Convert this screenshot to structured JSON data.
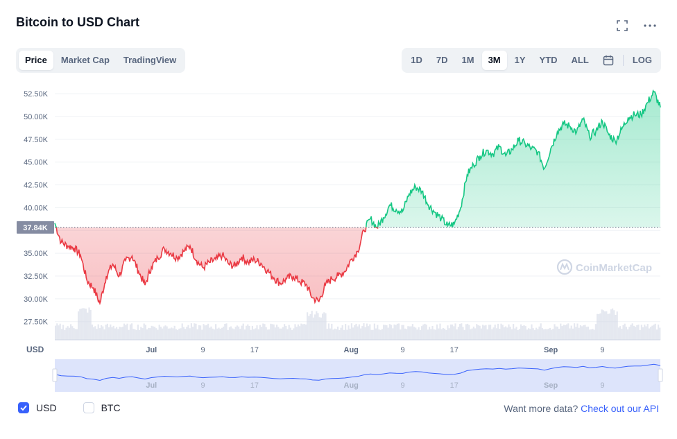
{
  "header": {
    "title": "Bitcoin to USD Chart",
    "fullscreen_icon": "fullscreen-icon",
    "more_icon": "more-dots-icon"
  },
  "metric_tabs": [
    {
      "label": "Price",
      "active": true
    },
    {
      "label": "Market Cap",
      "active": false
    },
    {
      "label": "TradingView",
      "active": false
    }
  ],
  "range_tabs": [
    {
      "label": "1D",
      "active": false
    },
    {
      "label": "7D",
      "active": false
    },
    {
      "label": "1M",
      "active": false
    },
    {
      "label": "3M",
      "active": true
    },
    {
      "label": "1Y",
      "active": false
    },
    {
      "label": "YTD",
      "active": false
    },
    {
      "label": "ALL",
      "active": false
    }
  ],
  "calendar_icon": "calendar-icon",
  "log_label": "LOG",
  "currency": {
    "usd": {
      "label": "USD",
      "checked": true
    },
    "btc": {
      "label": "BTC",
      "checked": false
    }
  },
  "api": {
    "prompt": "Want more data?",
    "link": "Check out our API"
  },
  "colors": {
    "up": "#16c784",
    "down": "#ea3943",
    "accent": "#3861fb",
    "navigator_line": "#3861fb"
  },
  "chart_data": {
    "type": "area",
    "baseline_label": "37.84K",
    "baseline": 37840,
    "y_unit_label": "USD",
    "ylim": [
      25500,
      53500
    ],
    "yticks": [
      27500,
      30000,
      32500,
      35000,
      37500,
      40000,
      42500,
      45000,
      47500,
      50000,
      52500
    ],
    "ytick_labels": [
      "27.50K",
      "30.00K",
      "32.50K",
      "35.00K",
      "",
      "40.00K",
      "42.50K",
      "45.00K",
      "47.50K",
      "50.00K",
      "52.50K"
    ],
    "xlim": [
      "2021-06-16",
      "2021-09-18"
    ],
    "xticks": [
      {
        "date": "2021-07-01",
        "label": "Jul",
        "bold": true
      },
      {
        "date": "2021-07-09",
        "label": "9",
        "bold": false
      },
      {
        "date": "2021-07-17",
        "label": "17",
        "bold": false
      },
      {
        "date": "2021-08-01",
        "label": "Aug",
        "bold": true
      },
      {
        "date": "2021-08-09",
        "label": "9",
        "bold": false
      },
      {
        "date": "2021-08-17",
        "label": "17",
        "bold": false
      },
      {
        "date": "2021-09-01",
        "label": "Sep",
        "bold": true
      },
      {
        "date": "2021-09-09",
        "label": "9",
        "bold": false
      }
    ],
    "grid": true,
    "watermark": "CoinMarketCap",
    "series": [
      {
        "values": [
          [
            "2021-06-16",
            38300
          ],
          [
            "2021-06-17",
            36200
          ],
          [
            "2021-06-18",
            35800
          ],
          [
            "2021-06-19",
            35600
          ],
          [
            "2021-06-20",
            34800
          ],
          [
            "2021-06-21",
            32000
          ],
          [
            "2021-06-22",
            31200
          ],
          [
            "2021-06-23",
            29500
          ],
          [
            "2021-06-24",
            32500
          ],
          [
            "2021-06-25",
            33800
          ],
          [
            "2021-06-26",
            32500
          ],
          [
            "2021-06-27",
            34200
          ],
          [
            "2021-06-28",
            34700
          ],
          [
            "2021-06-29",
            33000
          ],
          [
            "2021-06-30",
            31500
          ],
          [
            "2021-07-01",
            33500
          ],
          [
            "2021-07-02",
            34500
          ],
          [
            "2021-07-03",
            35500
          ],
          [
            "2021-07-04",
            35000
          ],
          [
            "2021-07-05",
            34500
          ],
          [
            "2021-07-06",
            35200
          ],
          [
            "2021-07-07",
            35800
          ],
          [
            "2021-07-08",
            34200
          ],
          [
            "2021-07-09",
            33400
          ],
          [
            "2021-07-10",
            34000
          ],
          [
            "2021-07-11",
            34300
          ],
          [
            "2021-07-12",
            34800
          ],
          [
            "2021-07-13",
            33800
          ],
          [
            "2021-07-14",
            33600
          ],
          [
            "2021-07-15",
            34600
          ],
          [
            "2021-07-16",
            34000
          ],
          [
            "2021-07-17",
            34300
          ],
          [
            "2021-07-18",
            33900
          ],
          [
            "2021-07-19",
            33100
          ],
          [
            "2021-07-20",
            32300
          ],
          [
            "2021-07-21",
            31700
          ],
          [
            "2021-07-22",
            32200
          ],
          [
            "2021-07-23",
            32500
          ],
          [
            "2021-07-24",
            31900
          ],
          [
            "2021-07-25",
            31600
          ],
          [
            "2021-07-26",
            30100
          ],
          [
            "2021-07-27",
            29700
          ],
          [
            "2021-07-28",
            31500
          ],
          [
            "2021-07-29",
            32200
          ],
          [
            "2021-07-30",
            32500
          ],
          [
            "2021-07-31",
            33000
          ],
          [
            "2021-08-01",
            34300
          ],
          [
            "2021-08-02",
            35200
          ],
          [
            "2021-08-03",
            37500
          ],
          [
            "2021-08-04",
            38800
          ],
          [
            "2021-08-05",
            37800
          ],
          [
            "2021-08-06",
            38900
          ],
          [
            "2021-08-07",
            40300
          ],
          [
            "2021-08-08",
            39800
          ],
          [
            "2021-08-09",
            39600
          ],
          [
            "2021-08-10",
            41500
          ],
          [
            "2021-08-11",
            42300
          ],
          [
            "2021-08-12",
            41800
          ],
          [
            "2021-08-13",
            40300
          ],
          [
            "2021-08-14",
            39500
          ],
          [
            "2021-08-15",
            38800
          ],
          [
            "2021-08-16",
            38000
          ],
          [
            "2021-08-17",
            38200
          ],
          [
            "2021-08-18",
            40000
          ],
          [
            "2021-08-19",
            43600
          ],
          [
            "2021-08-20",
            44700
          ],
          [
            "2021-08-21",
            45700
          ],
          [
            "2021-08-22",
            46300
          ],
          [
            "2021-08-23",
            45900
          ],
          [
            "2021-08-24",
            46700
          ],
          [
            "2021-08-25",
            45700
          ],
          [
            "2021-08-26",
            46400
          ],
          [
            "2021-08-27",
            47400
          ],
          [
            "2021-08-28",
            47000
          ],
          [
            "2021-08-29",
            46500
          ],
          [
            "2021-08-30",
            46100
          ],
          [
            "2021-08-31",
            44300
          ],
          [
            "2021-09-01",
            46500
          ],
          [
            "2021-09-02",
            48300
          ],
          [
            "2021-09-03",
            49200
          ],
          [
            "2021-09-04",
            48900
          ],
          [
            "2021-09-05",
            48300
          ],
          [
            "2021-09-06",
            49700
          ],
          [
            "2021-09-07",
            47800
          ],
          [
            "2021-09-08",
            48400
          ],
          [
            "2021-09-09",
            49500
          ],
          [
            "2021-09-10",
            48000
          ],
          [
            "2021-09-11",
            47300
          ],
          [
            "2021-09-12",
            48600
          ],
          [
            "2021-09-13",
            49900
          ],
          [
            "2021-09-14",
            50200
          ],
          [
            "2021-09-15",
            50200
          ],
          [
            "2021-09-16",
            51500
          ],
          [
            "2021-09-17",
            52700
          ],
          [
            "2021-09-18",
            51000
          ]
        ]
      }
    ]
  }
}
